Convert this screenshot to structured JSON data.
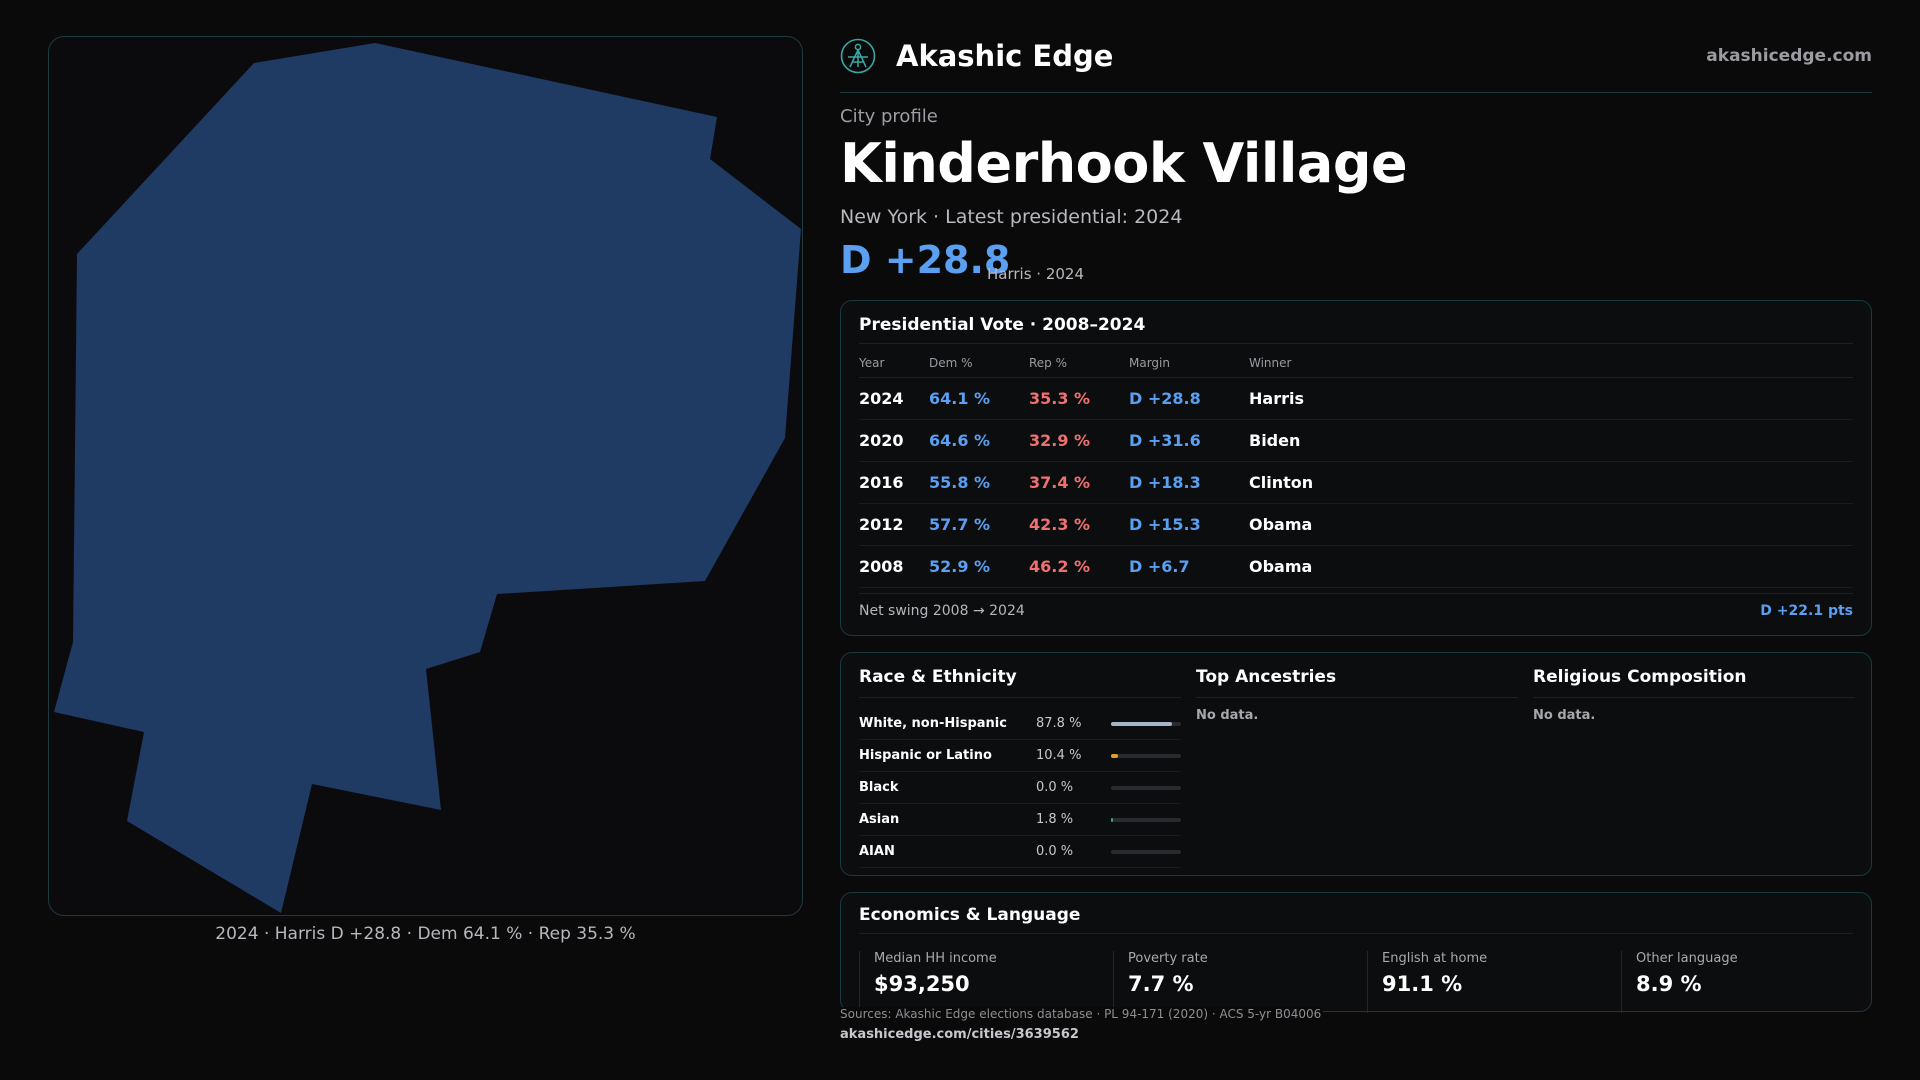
{
  "brand": {
    "name": "Akashic Edge",
    "url": "akashicedge.com"
  },
  "profile": {
    "eyebrow": "City profile",
    "title": "Kinderhook Village",
    "subtitle": "New York  · Latest presidential: 2024",
    "margin": "D +28.8",
    "margin_note": "Harris · 2024"
  },
  "map": {
    "caption": "2024 · Harris D +28.8 · Dem 64.1 % · Rep 35.3 %",
    "fill_color": "#1f3a63"
  },
  "vote": {
    "title": "Presidential Vote · 2008–2024",
    "headers": [
      "Year",
      "Dem %",
      "Rep %",
      "Margin",
      "Winner"
    ],
    "rows": [
      {
        "year": "2024",
        "dem": "64.1 %",
        "rep": "35.3 %",
        "margin": "D +28.8",
        "winner": "Harris"
      },
      {
        "year": "2020",
        "dem": "64.6 %",
        "rep": "32.9 %",
        "margin": "D +31.6",
        "winner": "Biden"
      },
      {
        "year": "2016",
        "dem": "55.8 %",
        "rep": "37.4 %",
        "margin": "D +18.3",
        "winner": "Clinton"
      },
      {
        "year": "2012",
        "dem": "57.7 %",
        "rep": "42.3 %",
        "margin": "D +15.3",
        "winner": "Obama"
      },
      {
        "year": "2008",
        "dem": "52.9 %",
        "rep": "46.2 %",
        "margin": "D +6.7",
        "winner": "Obama"
      }
    ],
    "swing_label": "Net swing 2008 → 2024",
    "swing_value": "D +22.1 pts"
  },
  "race": {
    "title": "Race & Ethnicity",
    "rows": [
      {
        "label": "White, non-Hispanic",
        "pct": "87.8 %",
        "value": 0.878,
        "color": "#a7b3c6"
      },
      {
        "label": "Hispanic or Latino",
        "pct": "10.4 %",
        "value": 0.104,
        "color": "#e39b2c"
      },
      {
        "label": "Black",
        "pct": "0.0 %",
        "value": 0.0,
        "color": "#6d7ae0"
      },
      {
        "label": "Asian",
        "pct": "1.8 %",
        "value": 0.018,
        "color": "#2fa88a"
      },
      {
        "label": "AIAN",
        "pct": "0.0 %",
        "value": 0.0,
        "color": "#c46ad0"
      }
    ]
  },
  "ancestries": {
    "title": "Top Ancestries",
    "empty": "No data."
  },
  "religion": {
    "title": "Religious Composition",
    "empty": "No data."
  },
  "economics": {
    "title": "Economics & Language",
    "stats": [
      {
        "label": "Median HH income",
        "value": "$93,250"
      },
      {
        "label": "Poverty rate",
        "value": "7.7 %"
      },
      {
        "label": "English at home",
        "value": "91.1 %"
      },
      {
        "label": "Other language",
        "value": "8.9 %"
      }
    ]
  },
  "footer": {
    "sources": "Sources: Akashic Edge elections database · PL 94-171 (2020) · ACS 5-yr B04006",
    "url": "akashicedge.com/cities/3639562"
  }
}
